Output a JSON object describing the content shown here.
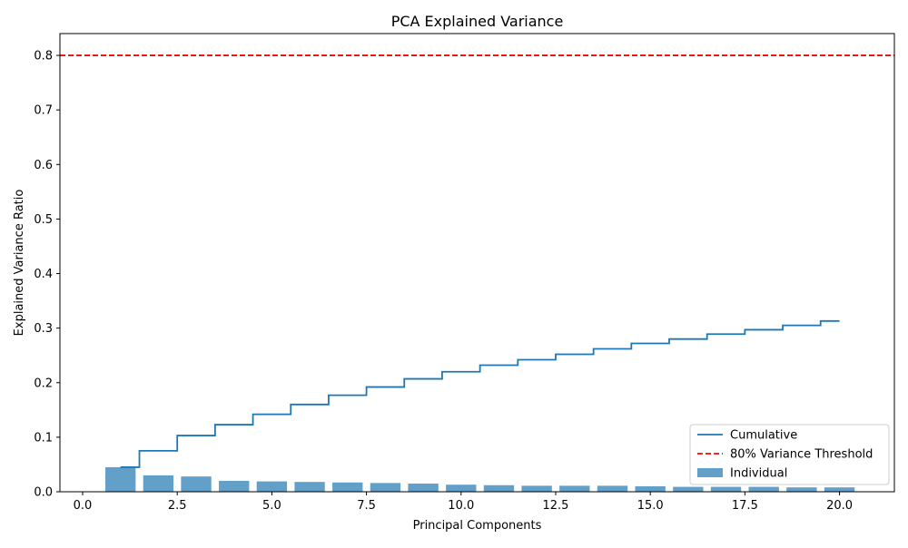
{
  "chart_data": {
    "type": "bar",
    "title": "PCA Explained Variance",
    "xlabel": "Principal Components",
    "ylabel": "Explained Variance Ratio",
    "xlim": [
      -0.6,
      21.45
    ],
    "ylim": [
      0,
      0.84
    ],
    "xticks": [
      0.0,
      2.5,
      5.0,
      7.5,
      10.0,
      12.5,
      15.0,
      17.5,
      20.0
    ],
    "xtick_labels": [
      "0.0",
      "2.5",
      "5.0",
      "7.5",
      "10.0",
      "12.5",
      "15.0",
      "17.5",
      "20.0"
    ],
    "yticks": [
      0.0,
      0.1,
      0.2,
      0.3,
      0.4,
      0.5,
      0.6,
      0.7,
      0.8
    ],
    "ytick_labels": [
      "0.0",
      "0.1",
      "0.2",
      "0.3",
      "0.4",
      "0.5",
      "0.6",
      "0.7",
      "0.8"
    ],
    "grid": false,
    "legend_position": "bottom-right",
    "components": [
      1,
      2,
      3,
      4,
      5,
      6,
      7,
      8,
      9,
      10,
      11,
      12,
      13,
      14,
      15,
      16,
      17,
      18,
      19,
      20
    ],
    "series": [
      {
        "name": "Cumulative",
        "type": "step",
        "color": "#1f77b4",
        "values": [
          0.045,
          0.075,
          0.103,
          0.123,
          0.142,
          0.16,
          0.177,
          0.192,
          0.207,
          0.22,
          0.232,
          0.242,
          0.252,
          0.262,
          0.272,
          0.28,
          0.289,
          0.297,
          0.305,
          0.313
        ]
      },
      {
        "name": "80% Variance Threshold",
        "type": "hline",
        "color": "#ff0000",
        "value": 0.8
      },
      {
        "name": "Individual",
        "type": "bar",
        "color": "#1f77b4",
        "opacity": 0.7,
        "values": [
          0.045,
          0.03,
          0.028,
          0.02,
          0.019,
          0.018,
          0.017,
          0.016,
          0.015,
          0.013,
          0.012,
          0.011,
          0.011,
          0.011,
          0.01,
          0.009,
          0.009,
          0.009,
          0.008,
          0.008
        ]
      }
    ]
  }
}
